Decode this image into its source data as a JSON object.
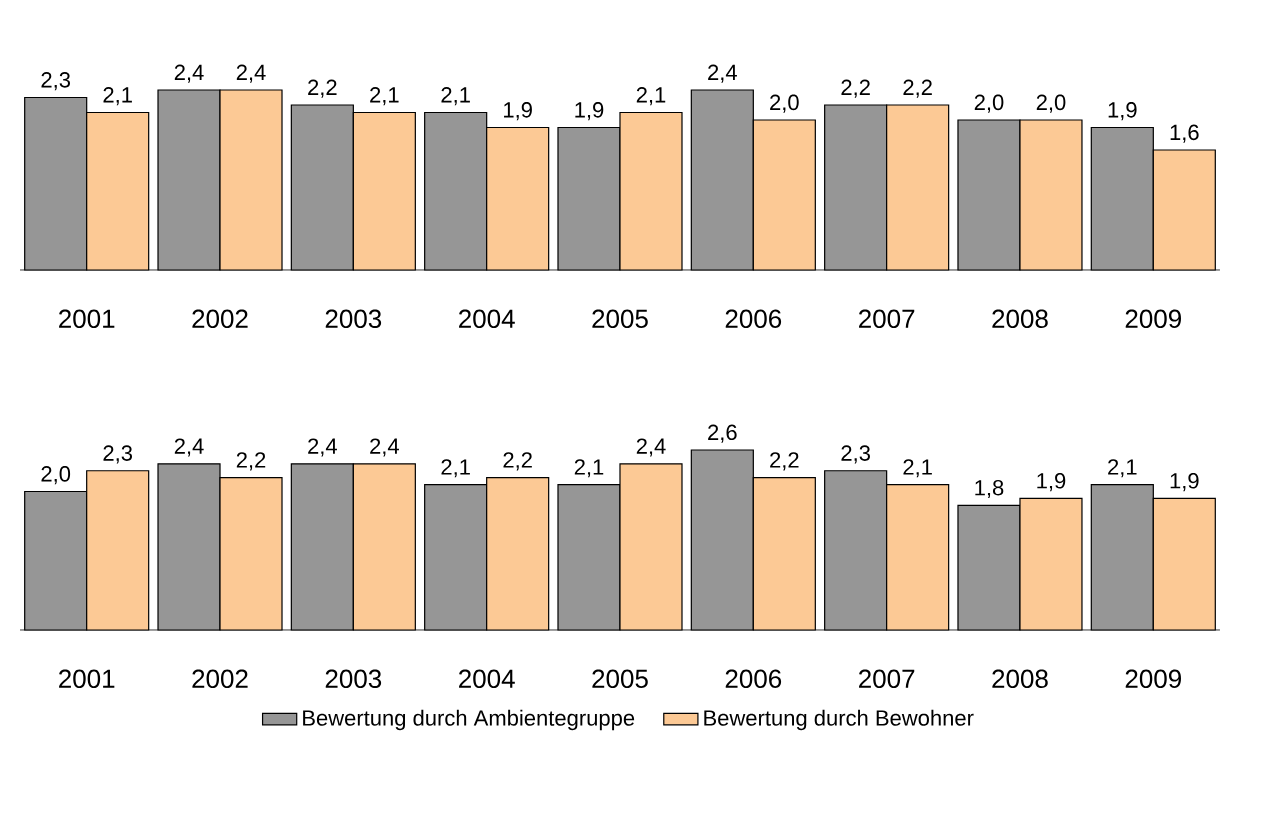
{
  "chart_data": [
    {
      "type": "bar",
      "categories": [
        "2001",
        "2002",
        "2003",
        "2004",
        "2005",
        "2006",
        "2007",
        "2008",
        "2009"
      ],
      "legend": false,
      "series": [
        {
          "color": "#969696",
          "values": [
            2.3,
            2.4,
            2.2,
            2.1,
            1.9,
            2.4,
            2.2,
            2.0,
            1.9
          ],
          "value_labels": [
            "2,3",
            "2,4",
            "2,2",
            "2,1",
            "1,9",
            "2,4",
            "2,2",
            "2,0",
            "1,9"
          ]
        },
        {
          "color": "#fcc995",
          "values": [
            2.1,
            2.4,
            2.1,
            1.9,
            2.1,
            2.0,
            2.2,
            2.0,
            1.6
          ],
          "value_labels": [
            "2,1",
            "2,4",
            "2,1",
            "1,9",
            "2,1",
            "2,0",
            "2,2",
            "2,0",
            "1,6"
          ]
        }
      ]
    },
    {
      "type": "bar",
      "categories": [
        "2001",
        "2002",
        "2003",
        "2004",
        "2005",
        "2006",
        "2007",
        "2008",
        "2009"
      ],
      "legend": "bottom",
      "series": [
        {
          "name": "Bewertung durch Ambientegruppe",
          "color": "#969696",
          "values": [
            2.0,
            2.4,
            2.4,
            2.1,
            2.1,
            2.6,
            2.3,
            1.8,
            2.1
          ],
          "value_labels": [
            "2,0",
            "2,4",
            "2,4",
            "2,1",
            "2,1",
            "2,6",
            "2,3",
            "1,8",
            "2,1"
          ]
        },
        {
          "name": "Bewertung durch Bewohner",
          "color": "#fcc995",
          "values": [
            2.3,
            2.2,
            2.4,
            2.2,
            2.4,
            2.2,
            2.1,
            1.9,
            1.9
          ],
          "value_labels": [
            "2,3",
            "2,2",
            "2,4",
            "2,2",
            "2,4",
            "2,2",
            "2,1",
            "1,9",
            "1,9"
          ]
        }
      ]
    }
  ]
}
